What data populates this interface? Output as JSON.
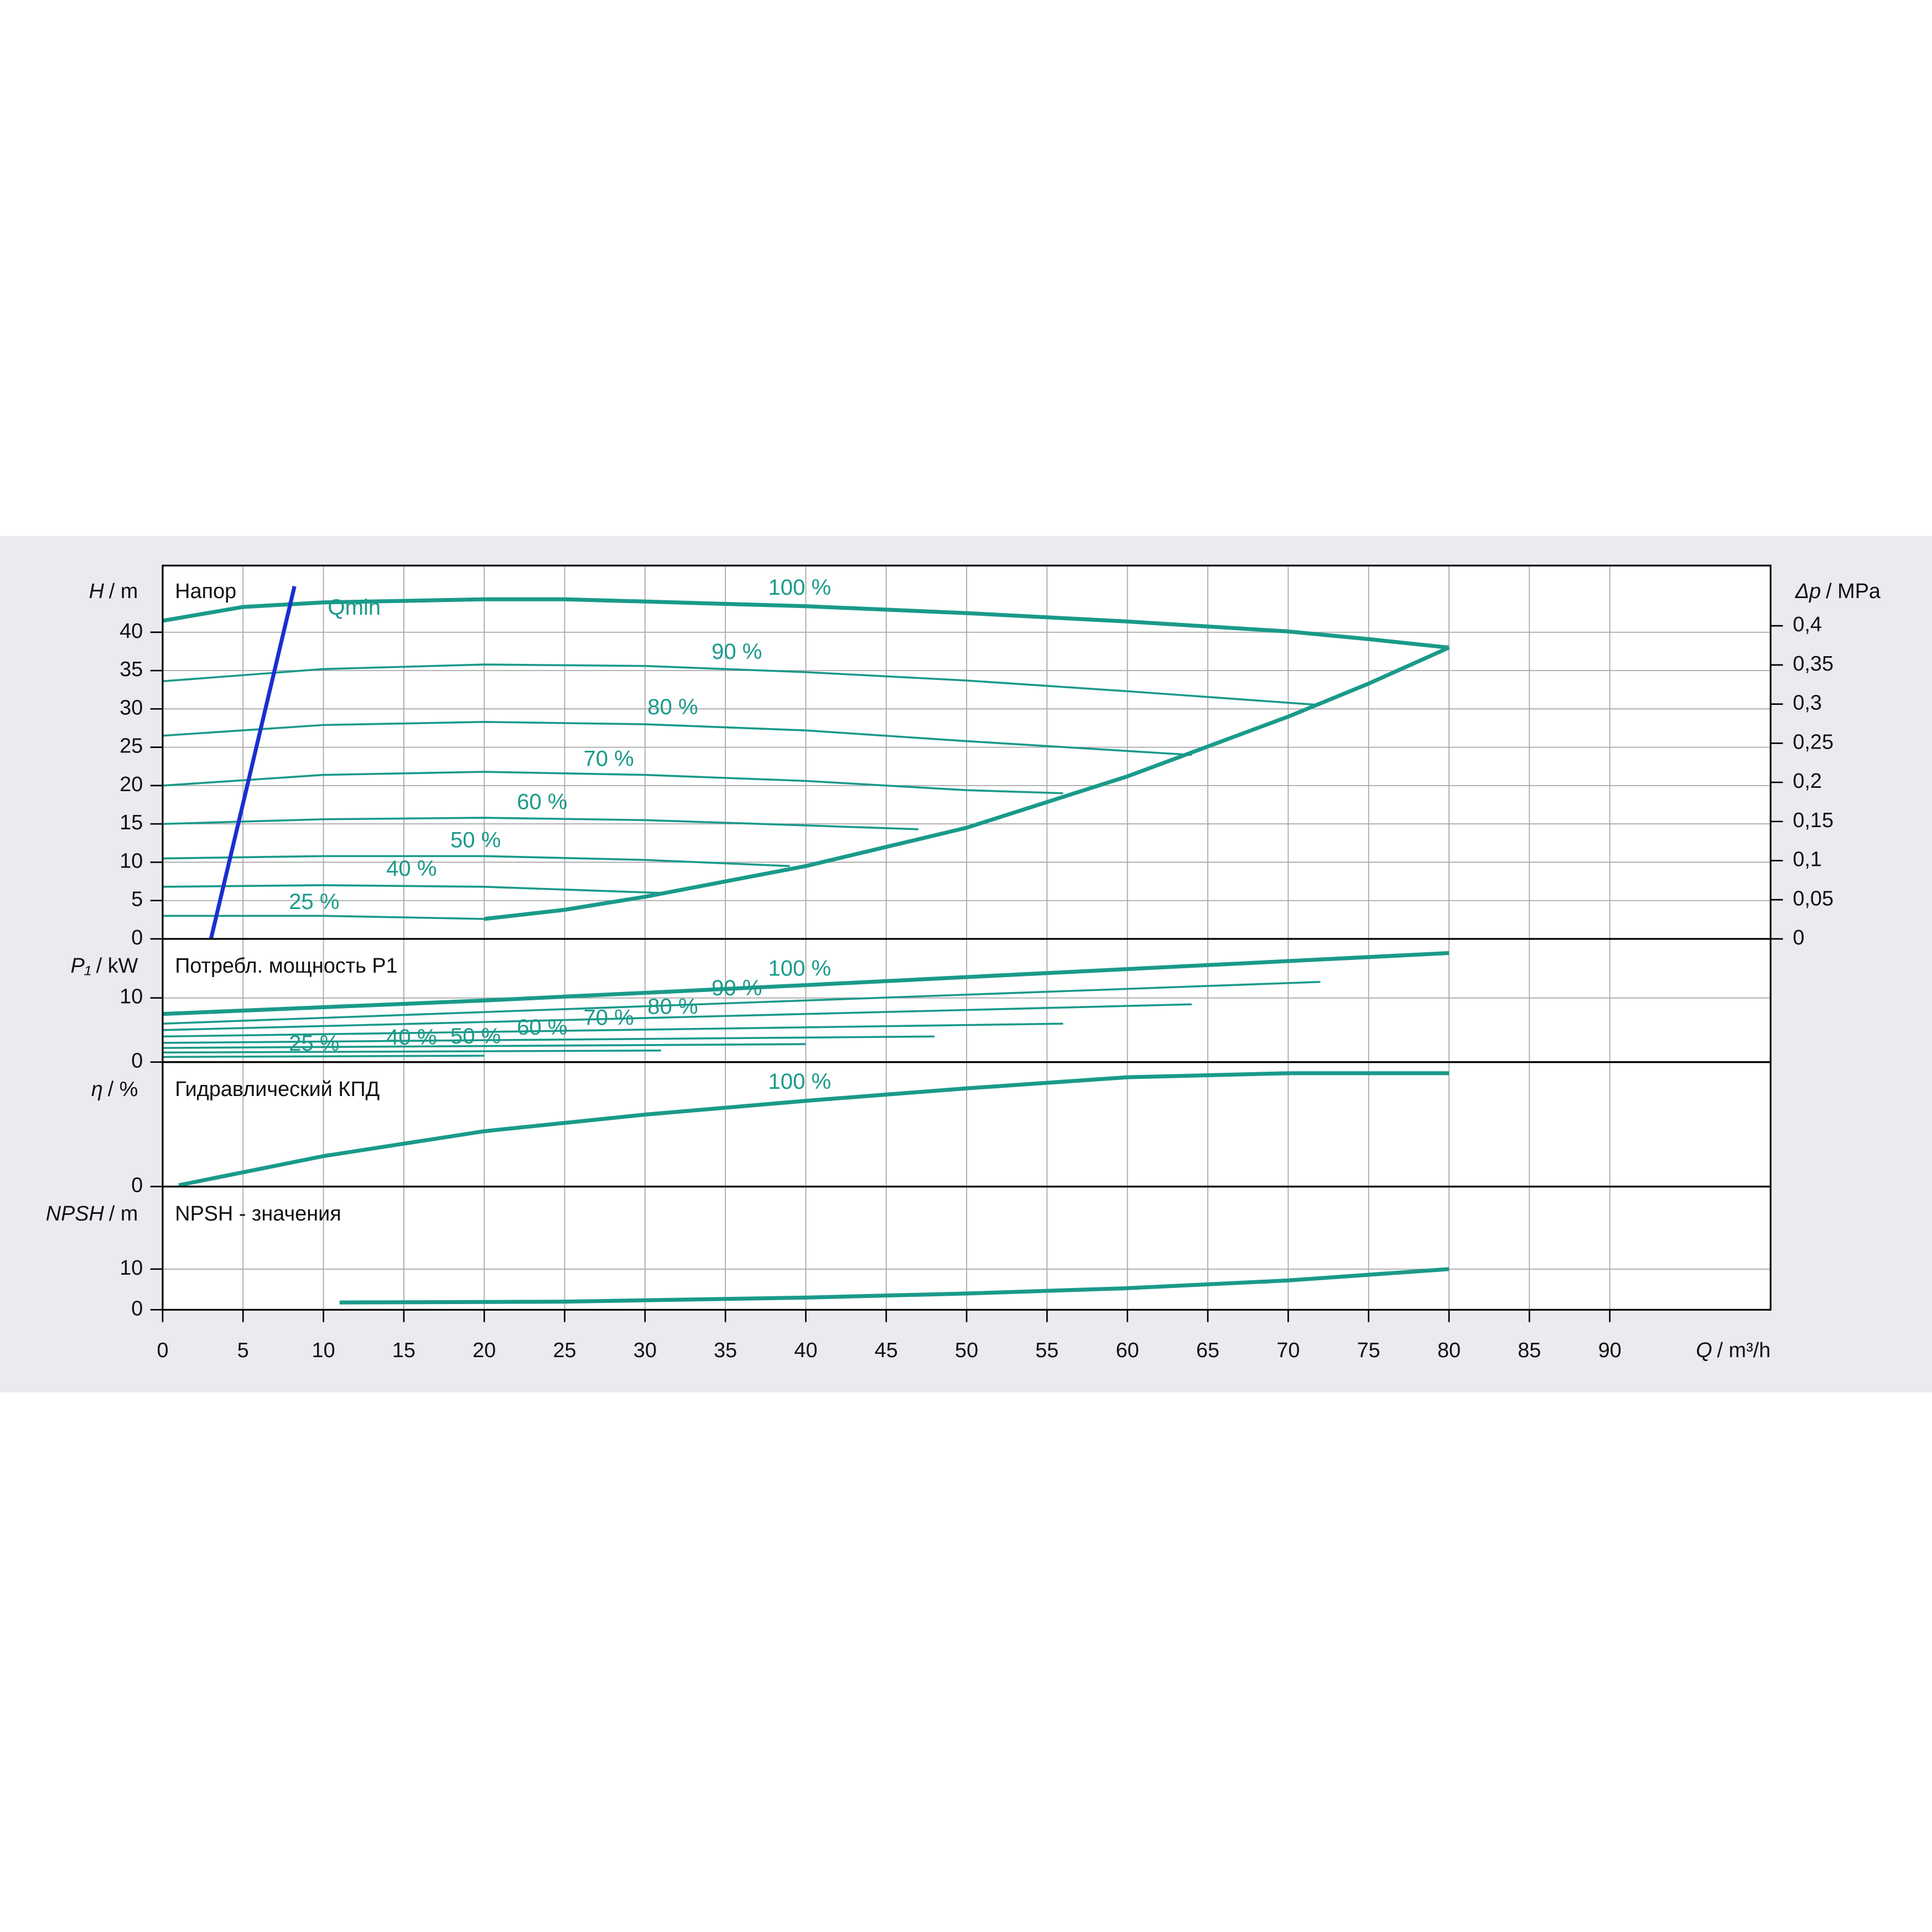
{
  "chart_data": [
    {
      "type": "line",
      "title": "Напор",
      "ylabel_symbol": "H",
      "ylabel_unit": "/ m",
      "y2label_symbol": "Δp",
      "y2label_unit": "/ MPa",
      "xlim": [
        0,
        100
      ],
      "ylim": [
        0,
        48.7
      ],
      "yticks": [
        0,
        5,
        10,
        15,
        20,
        25,
        30,
        35,
        40
      ],
      "y2lim": [
        0,
        0.477
      ],
      "y2ticks": [
        0,
        {
          "value": 0.05,
          "label": "0,05"
        },
        {
          "value": 0.1,
          "label": "0,1"
        },
        {
          "value": 0.15,
          "label": "0,15"
        },
        {
          "value": 0.2,
          "label": "0,2"
        },
        {
          "value": 0.25,
          "label": "0,25"
        },
        {
          "value": 0.3,
          "label": "0,3"
        },
        {
          "value": 0.35,
          "label": "0,35"
        },
        {
          "value": 0.4,
          "label": "0,4"
        }
      ],
      "grid": true,
      "series": [
        {
          "name": "100 %",
          "color": "#1a9a8a",
          "x": [
            0,
            5,
            10,
            20,
            25,
            30,
            40,
            50,
            60,
            70,
            75,
            80
          ],
          "values": [
            41.5,
            43.3,
            43.9,
            44.3,
            44.3,
            44,
            43.4,
            42.5,
            41.4,
            40.1,
            39.1,
            38
          ]
        },
        {
          "name": "90 %",
          "color": "#1a9a8a",
          "x": [
            0,
            10,
            20,
            30,
            40,
            50,
            60,
            72
          ],
          "values": [
            33.6,
            35.2,
            35.8,
            35.6,
            34.8,
            33.7,
            32.3,
            30.5
          ]
        },
        {
          "name": "80 %",
          "color": "#1a9a8a",
          "x": [
            0,
            10,
            20,
            30,
            40,
            50,
            64
          ],
          "values": [
            26.5,
            27.9,
            28.3,
            28,
            27.2,
            25.8,
            24
          ]
        },
        {
          "name": "70 %",
          "color": "#1a9a8a",
          "x": [
            0,
            10,
            20,
            30,
            40,
            50,
            56
          ],
          "values": [
            20,
            21.4,
            21.8,
            21.4,
            20.6,
            19.4,
            19
          ]
        },
        {
          "name": "60 %",
          "color": "#1a9a8a",
          "x": [
            0,
            10,
            20,
            30,
            40,
            47
          ],
          "values": [
            15,
            15.6,
            15.8,
            15.5,
            14.8,
            14.3
          ]
        },
        {
          "name": "50 %",
          "color": "#1a9a8a",
          "x": [
            0,
            10,
            20,
            30,
            39
          ],
          "values": [
            10.5,
            10.8,
            10.8,
            10.3,
            9.5
          ]
        },
        {
          "name": "40 %",
          "color": "#1a9a8a",
          "x": [
            0,
            10,
            20,
            31
          ],
          "values": [
            6.8,
            7,
            6.8,
            6
          ]
        },
        {
          "name": "25 %",
          "color": "#1a9a8a",
          "x": [
            0,
            10,
            20
          ],
          "values": [
            3,
            3,
            2.6
          ]
        },
        {
          "color": "#1a9a8a",
          "x": [
            20,
            25,
            30,
            40,
            50,
            60,
            70,
            75,
            80
          ],
          "values": [
            2.6,
            3.8,
            5.5,
            9.5,
            14.5,
            21.2,
            29,
            33.3,
            38
          ]
        },
        {
          "name": "Qmin",
          "color": "#1a2fd0",
          "x": [
            3,
            8.2
          ],
          "values": [
            0,
            46
          ]
        }
      ]
    },
    {
      "type": "line",
      "title": "Потребл. мощность P1",
      "ylabel_symbol": "P₁",
      "ylabel_unit": "/ kW",
      "xlim": [
        0,
        100
      ],
      "ylim": [
        0,
        19.2
      ],
      "yticks": [
        0,
        10
      ],
      "grid": true,
      "series": [
        {
          "name": "100 %",
          "color": "#1a9a8a",
          "x": [
            0,
            20,
            40,
            60,
            80
          ],
          "values": [
            7.5,
            9.6,
            12,
            14.5,
            17
          ]
        },
        {
          "name": "90 %",
          "color": "#1a9a8a",
          "x": [
            0,
            72
          ],
          "values": [
            6,
            12.5
          ]
        },
        {
          "name": "80 %",
          "color": "#1a9a8a",
          "x": [
            0,
            64
          ],
          "values": [
            5,
            9
          ]
        },
        {
          "name": "70 %",
          "color": "#1a9a8a",
          "x": [
            0,
            56
          ],
          "values": [
            4,
            6
          ]
        },
        {
          "name": "60 %",
          "color": "#1a9a8a",
          "x": [
            0,
            48
          ],
          "values": [
            3,
            4
          ]
        },
        {
          "name": "50 %",
          "color": "#1a9a8a",
          "x": [
            0,
            40
          ],
          "values": [
            2.2,
            2.8
          ]
        },
        {
          "name": "40 %",
          "color": "#1a9a8a",
          "x": [
            0,
            31
          ],
          "values": [
            1.5,
            1.8
          ]
        },
        {
          "name": "25 %",
          "color": "#1a9a8a",
          "x": [
            0,
            20
          ],
          "values": [
            0.8,
            1
          ]
        }
      ]
    },
    {
      "type": "line",
      "title": "Гидравлический КПД",
      "ylabel_symbol": "η",
      "ylabel_unit": "/ %",
      "xlim": [
        0,
        100
      ],
      "ylim": [
        0,
        90
      ],
      "yticks": [
        0
      ],
      "grid": true,
      "series": [
        {
          "name": "100 %",
          "color": "#1a9a8a",
          "x": [
            1,
            10,
            20,
            30,
            40,
            50,
            60,
            70,
            80
          ],
          "values": [
            1,
            22,
            40,
            52,
            62,
            71,
            79,
            82,
            82
          ]
        }
      ]
    },
    {
      "type": "line",
      "title": "NPSH - значения",
      "ylabel_symbol": "NPSH",
      "ylabel_unit": "/ m",
      "xlabel_symbol": "Q",
      "xlabel_unit": "/ m³/h",
      "xlim": [
        0,
        100
      ],
      "ylim": [
        0,
        30.3
      ],
      "yticks": [
        0,
        10
      ],
      "xticks": [
        0,
        5,
        10,
        15,
        20,
        25,
        30,
        35,
        40,
        45,
        50,
        55,
        60,
        65,
        70,
        75,
        80,
        85,
        90
      ],
      "grid": true,
      "series": [
        {
          "color": "#1a9a8a",
          "x": [
            11,
            25,
            40,
            50,
            60,
            70,
            80
          ],
          "values": [
            1.8,
            2,
            3,
            4,
            5.3,
            7.2,
            10
          ]
        }
      ]
    }
  ]
}
